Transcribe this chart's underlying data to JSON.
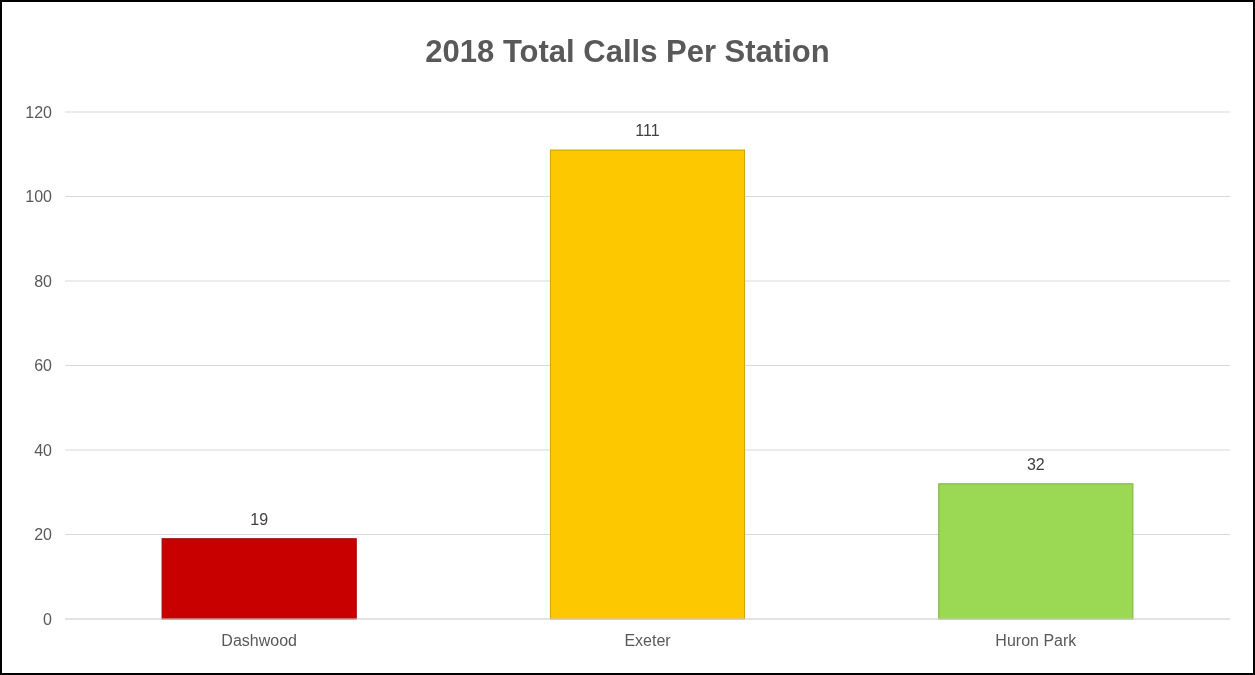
{
  "chart_data": {
    "type": "bar",
    "title": "2018 Total Calls Per Station",
    "categories": [
      "Dashwood",
      "Exeter",
      "Huron Park"
    ],
    "values": [
      19,
      111,
      32
    ],
    "colors": [
      "#c80000",
      "#fdc800",
      "#9bd853"
    ],
    "ylim": [
      0,
      120
    ],
    "yticks": [
      0,
      20,
      40,
      60,
      80,
      100,
      120
    ],
    "grid": "y",
    "data_labels": true
  }
}
